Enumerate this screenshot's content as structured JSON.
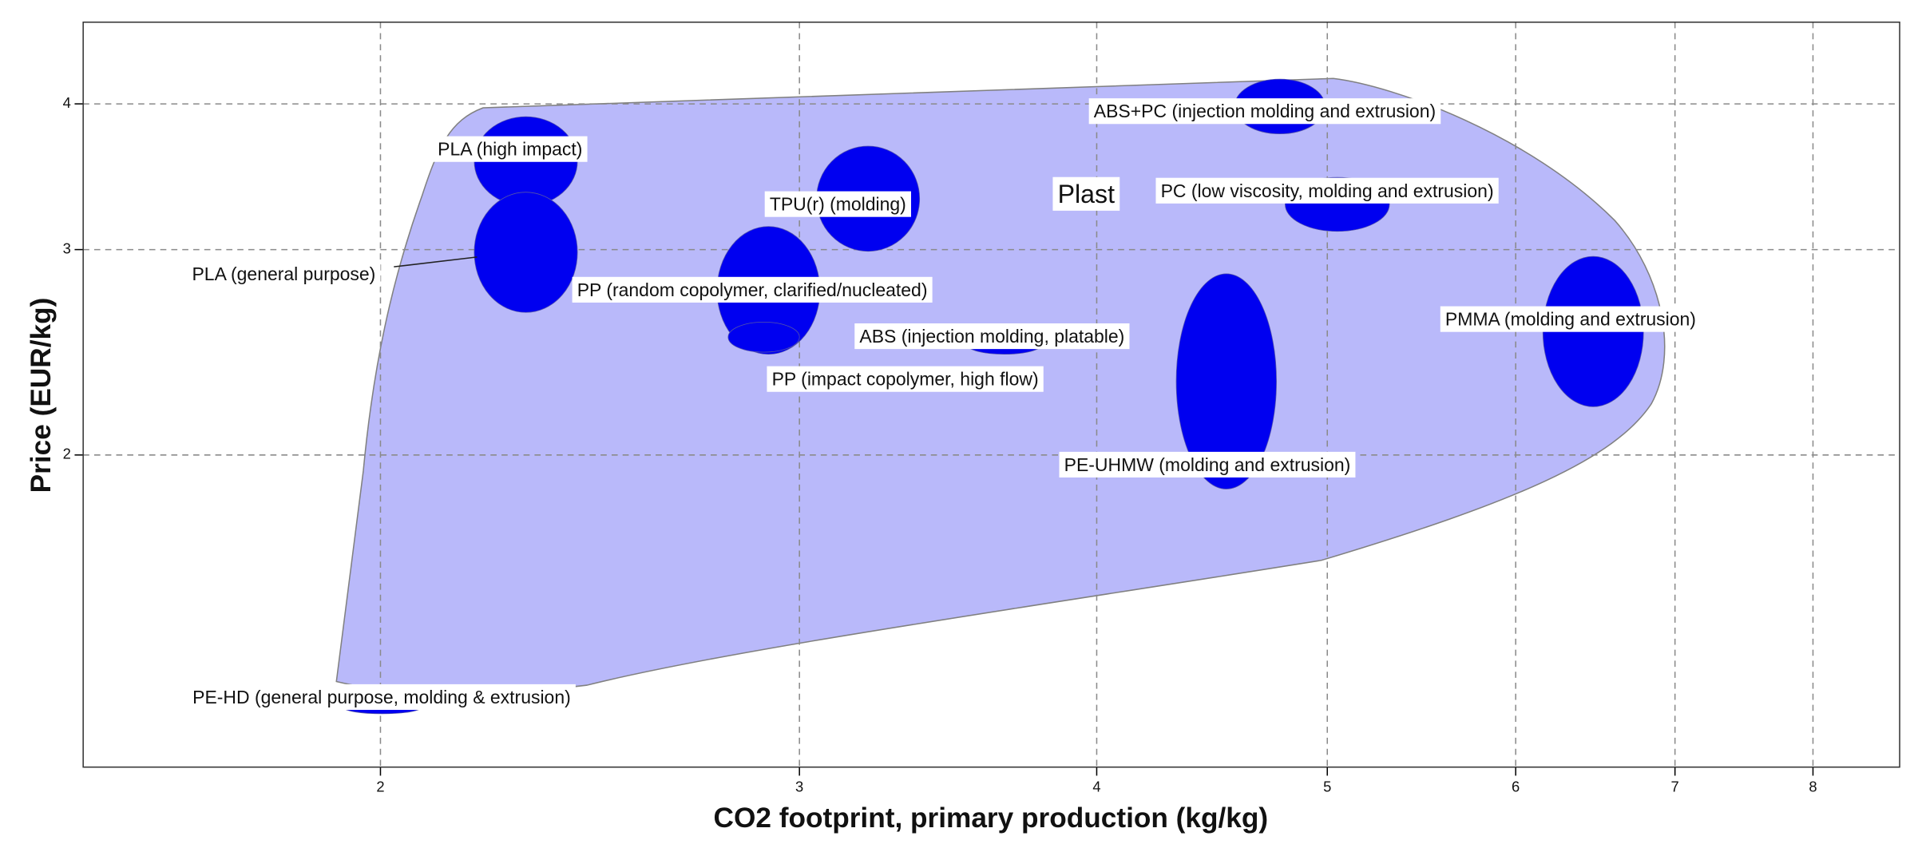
{
  "chart_data": {
    "type": "bubble-range",
    "x_label": "CO2 footprint, primary production (kg/kg)",
    "y_label": "Price (EUR/kg)",
    "log_x": true,
    "log_y": true,
    "grid": true,
    "color": "#0000f0",
    "envelope_color": "#b9b9fa",
    "envelope_label": "Plast",
    "xlim": [
      1.5,
      8.7
    ],
    "ylim": [
      1.08,
      4.7
    ],
    "xticks": [
      2,
      3,
      4,
      5,
      6,
      7,
      8
    ],
    "yticks": [
      2,
      3,
      4
    ],
    "series": [
      {
        "name": "PLA (high impact)",
        "x": [
          2.19,
          2.42
        ],
        "y": [
          3.27,
          3.9
        ]
      },
      {
        "name": "PLA (general purpose)",
        "x": [
          2.19,
          2.42
        ],
        "y": [
          2.65,
          3.36
        ]
      },
      {
        "name": "TPU(r) (molding)",
        "x": [
          3.05,
          3.37
        ],
        "y": [
          2.99,
          3.68
        ]
      },
      {
        "name": "PP (random copolymer, clarified/nucleated)",
        "x": [
          2.77,
          3.06
        ],
        "y": [
          2.44,
          3.14
        ]
      },
      {
        "name": "ABS (injection molding, platable)",
        "x": [
          3.53,
          3.79
        ],
        "y": [
          2.44,
          2.53
        ]
      },
      {
        "name": "PP (impact copolymer, high flow)",
        "x": [
          2.8,
          3.0
        ],
        "y": [
          2.45,
          2.6
        ]
      },
      {
        "name": "ABS+PC (injection molding and extrusion)",
        "x": [
          4.57,
          4.99
        ],
        "y": [
          3.77,
          4.2
        ]
      },
      {
        "name": "PC (low viscosity, molding and extrusion)",
        "x": [
          4.8,
          5.31
        ],
        "y": [
          3.11,
          3.46
        ]
      },
      {
        "name": "PE-UHMW (molding and extrusion)",
        "x": [
          4.32,
          4.76
        ],
        "y": [
          1.87,
          2.86
        ]
      },
      {
        "name": "PMMA (molding and extrusion)",
        "x": [
          6.16,
          6.79
        ],
        "y": [
          2.2,
          2.96
        ]
      },
      {
        "name": "PE-HD (general purpose, molding & extrusion)",
        "x": [
          1.93,
          2.08
        ],
        "y": [
          1.2,
          1.23
        ]
      }
    ]
  }
}
